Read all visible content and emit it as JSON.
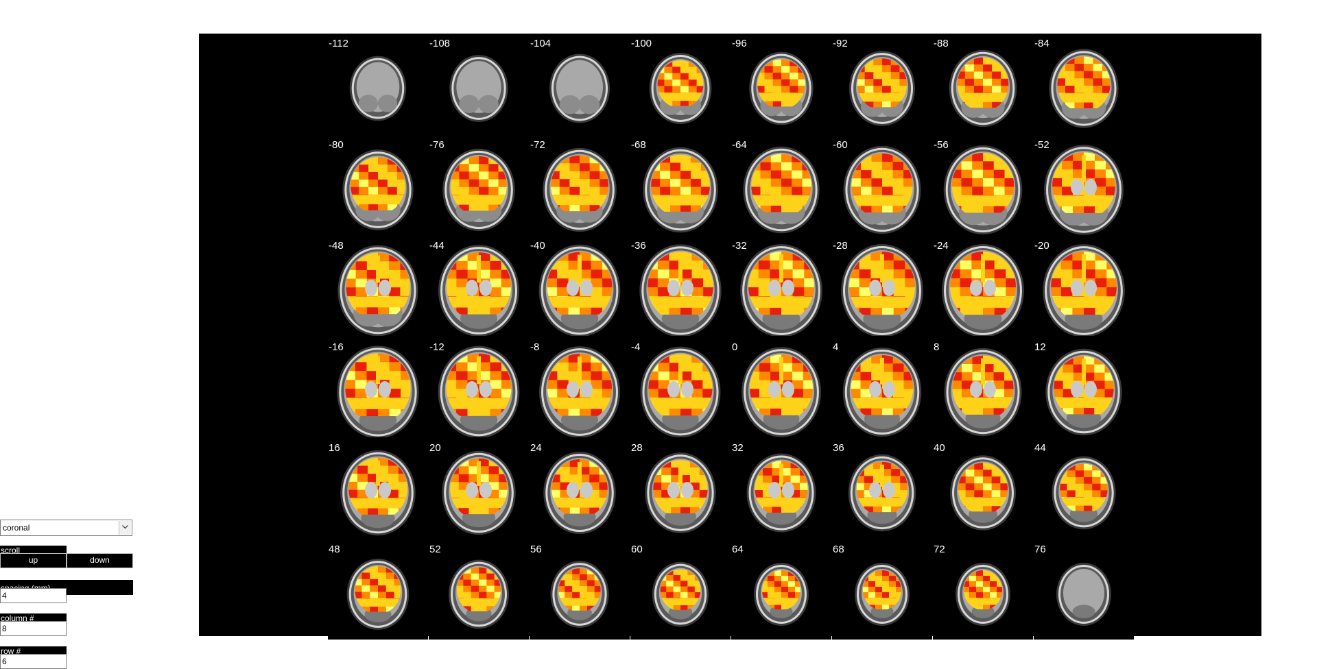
{
  "controls": {
    "view_select": {
      "value": "coronal"
    },
    "scroll": {
      "label": "scroll",
      "up_label": "up",
      "down_label": "down"
    },
    "spacing": {
      "label": "spacing (mm)",
      "value": "4"
    },
    "columns": {
      "label": "column #",
      "value": "8"
    },
    "rows": {
      "label": "row #",
      "value": "6"
    }
  },
  "viewer": {
    "orientation": "coronal",
    "slice_labels": [
      "-112",
      "-108",
      "-104",
      "-100",
      "-96",
      "-92",
      "-88",
      "-84",
      "-80",
      "-76",
      "-72",
      "-68",
      "-64",
      "-60",
      "-56",
      "-52",
      "-48",
      "-44",
      "-40",
      "-36",
      "-32",
      "-28",
      "-24",
      "-20",
      "-16",
      "-12",
      "-8",
      "-4",
      "0",
      "4",
      "8",
      "12",
      "16",
      "20",
      "24",
      "28",
      "32",
      "36",
      "40",
      "44",
      "48",
      "52",
      "56",
      "60",
      "64",
      "68",
      "72",
      "76"
    ],
    "overlay_colors": {
      "dark": "#e8200a",
      "mid": "#ff8a00",
      "light": "#ffd21a",
      "pale": "#ffff66"
    },
    "background": "#000000"
  }
}
